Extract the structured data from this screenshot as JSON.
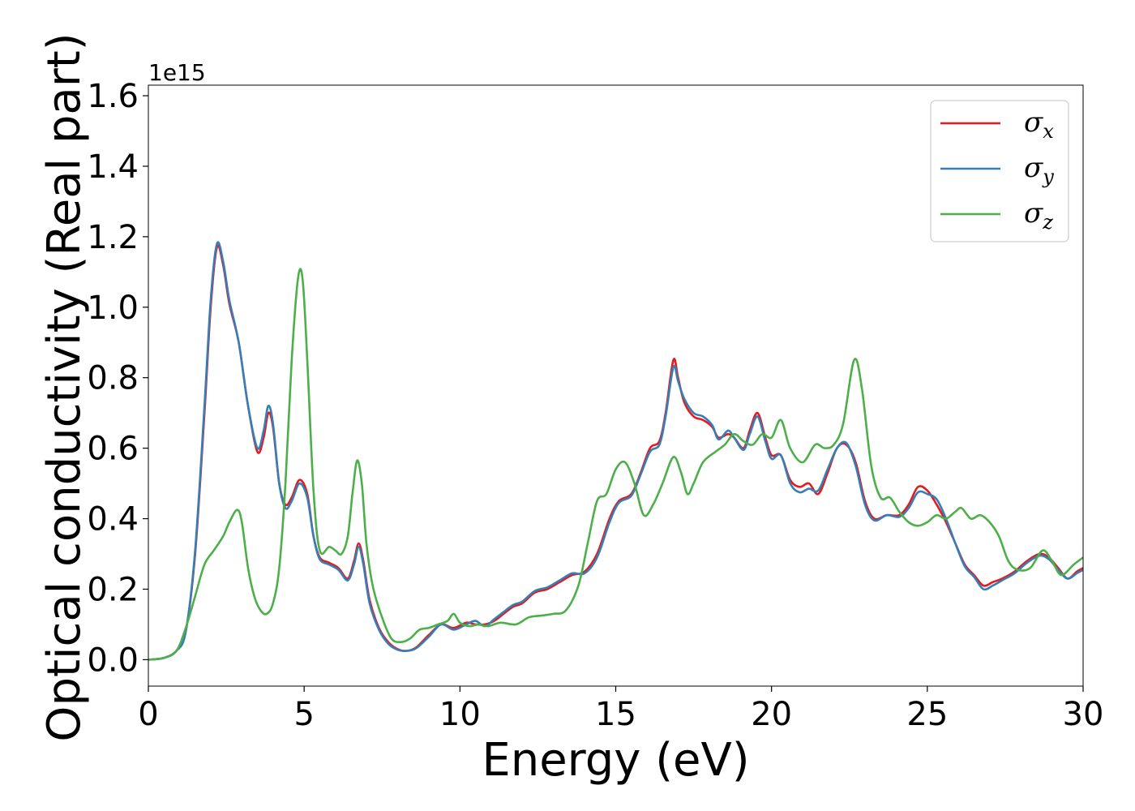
{
  "chart_data": {
    "type": "line",
    "xlabel": "Energy (eV)",
    "ylabel": "Optical conductivity (Real part)",
    "y_offset_label": "1e15",
    "xlim": [
      0,
      30
    ],
    "ylim": [
      -0.075,
      1.63
    ],
    "x_ticks": [
      0,
      5,
      10,
      15,
      20,
      25,
      30
    ],
    "x_tick_labels": [
      "0",
      "5",
      "10",
      "15",
      "20",
      "25",
      "30"
    ],
    "y_ticks": [
      0.0,
      0.2,
      0.4,
      0.6,
      0.8,
      1.0,
      1.2,
      1.4,
      1.6
    ],
    "y_tick_labels": [
      "0.0",
      "0.2",
      "0.4",
      "0.6",
      "0.8",
      "1.0",
      "1.2",
      "1.4",
      "1.6"
    ],
    "grid": false,
    "legend_position": "top-right",
    "series": [
      {
        "name": "σ",
        "subscript": "x",
        "color": "#e41a1c",
        "points": [
          [
            0,
            0
          ],
          [
            0.5,
            0.005
          ],
          [
            0.9,
            0.025
          ],
          [
            1.2,
            0.08
          ],
          [
            1.5,
            0.3
          ],
          [
            1.8,
            0.7
          ],
          [
            2.0,
            1.0
          ],
          [
            2.2,
            1.17
          ],
          [
            2.4,
            1.12
          ],
          [
            2.6,
            1.01
          ],
          [
            2.9,
            0.9
          ],
          [
            3.2,
            0.72
          ],
          [
            3.5,
            0.59
          ],
          [
            3.7,
            0.63
          ],
          [
            3.85,
            0.7
          ],
          [
            4.0,
            0.66
          ],
          [
            4.2,
            0.5
          ],
          [
            4.4,
            0.44
          ],
          [
            4.6,
            0.46
          ],
          [
            4.85,
            0.51
          ],
          [
            5.1,
            0.47
          ],
          [
            5.3,
            0.35
          ],
          [
            5.5,
            0.29
          ],
          [
            5.8,
            0.275
          ],
          [
            6.1,
            0.26
          ],
          [
            6.4,
            0.23
          ],
          [
            6.6,
            0.28
          ],
          [
            6.75,
            0.33
          ],
          [
            6.9,
            0.28
          ],
          [
            7.1,
            0.17
          ],
          [
            7.4,
            0.09
          ],
          [
            7.7,
            0.05
          ],
          [
            8.0,
            0.03
          ],
          [
            8.3,
            0.025
          ],
          [
            8.6,
            0.035
          ],
          [
            9.0,
            0.07
          ],
          [
            9.4,
            0.1
          ],
          [
            9.8,
            0.09
          ],
          [
            10.2,
            0.105
          ],
          [
            10.5,
            0.1
          ],
          [
            10.8,
            0.1
          ],
          [
            11.1,
            0.11
          ],
          [
            11.4,
            0.13
          ],
          [
            11.7,
            0.15
          ],
          [
            12.0,
            0.16
          ],
          [
            12.4,
            0.19
          ],
          [
            12.8,
            0.2
          ],
          [
            13.2,
            0.22
          ],
          [
            13.6,
            0.24
          ],
          [
            14.0,
            0.25
          ],
          [
            14.4,
            0.3
          ],
          [
            14.8,
            0.4
          ],
          [
            15.1,
            0.45
          ],
          [
            15.5,
            0.47
          ],
          [
            15.8,
            0.53
          ],
          [
            16.1,
            0.6
          ],
          [
            16.4,
            0.62
          ],
          [
            16.6,
            0.7
          ],
          [
            16.85,
            0.85
          ],
          [
            17.0,
            0.8
          ],
          [
            17.2,
            0.73
          ],
          [
            17.5,
            0.69
          ],
          [
            17.8,
            0.68
          ],
          [
            18.1,
            0.66
          ],
          [
            18.3,
            0.63
          ],
          [
            18.6,
            0.64
          ],
          [
            18.8,
            0.63
          ],
          [
            19.1,
            0.6
          ],
          [
            19.3,
            0.65
          ],
          [
            19.55,
            0.7
          ],
          [
            19.8,
            0.63
          ],
          [
            20.0,
            0.58
          ],
          [
            20.3,
            0.58
          ],
          [
            20.6,
            0.51
          ],
          [
            20.9,
            0.49
          ],
          [
            21.2,
            0.5
          ],
          [
            21.5,
            0.47
          ],
          [
            21.8,
            0.53
          ],
          [
            22.1,
            0.6
          ],
          [
            22.4,
            0.61
          ],
          [
            22.7,
            0.56
          ],
          [
            23.0,
            0.45
          ],
          [
            23.3,
            0.4
          ],
          [
            23.7,
            0.41
          ],
          [
            24.1,
            0.41
          ],
          [
            24.4,
            0.44
          ],
          [
            24.7,
            0.49
          ],
          [
            25.0,
            0.48
          ],
          [
            25.3,
            0.44
          ],
          [
            25.6,
            0.39
          ],
          [
            25.9,
            0.33
          ],
          [
            26.2,
            0.27
          ],
          [
            26.5,
            0.24
          ],
          [
            26.8,
            0.21
          ],
          [
            27.1,
            0.22
          ],
          [
            27.4,
            0.23
          ],
          [
            27.8,
            0.25
          ],
          [
            28.2,
            0.28
          ],
          [
            28.6,
            0.3
          ],
          [
            28.9,
            0.29
          ],
          [
            29.2,
            0.26
          ],
          [
            29.5,
            0.23
          ],
          [
            29.8,
            0.25
          ],
          [
            30.0,
            0.26
          ]
        ]
      },
      {
        "name": "σ",
        "subscript": "y",
        "color": "#377eb8",
        "points": [
          [
            0,
            0
          ],
          [
            0.5,
            0.005
          ],
          [
            0.9,
            0.025
          ],
          [
            1.2,
            0.08
          ],
          [
            1.5,
            0.31
          ],
          [
            1.8,
            0.72
          ],
          [
            2.0,
            1.02
          ],
          [
            2.2,
            1.18
          ],
          [
            2.4,
            1.13
          ],
          [
            2.6,
            1.02
          ],
          [
            2.9,
            0.9
          ],
          [
            3.2,
            0.72
          ],
          [
            3.5,
            0.6
          ],
          [
            3.7,
            0.65
          ],
          [
            3.85,
            0.72
          ],
          [
            4.0,
            0.67
          ],
          [
            4.2,
            0.5
          ],
          [
            4.4,
            0.43
          ],
          [
            4.6,
            0.45
          ],
          [
            4.85,
            0.5
          ],
          [
            5.1,
            0.46
          ],
          [
            5.3,
            0.35
          ],
          [
            5.5,
            0.285
          ],
          [
            5.8,
            0.27
          ],
          [
            6.1,
            0.255
          ],
          [
            6.4,
            0.225
          ],
          [
            6.6,
            0.27
          ],
          [
            6.75,
            0.32
          ],
          [
            6.9,
            0.27
          ],
          [
            7.1,
            0.16
          ],
          [
            7.4,
            0.085
          ],
          [
            7.7,
            0.045
          ],
          [
            8.0,
            0.028
          ],
          [
            8.3,
            0.025
          ],
          [
            8.6,
            0.033
          ],
          [
            9.0,
            0.065
          ],
          [
            9.4,
            0.1
          ],
          [
            9.8,
            0.085
          ],
          [
            10.2,
            0.1
          ],
          [
            10.5,
            0.11
          ],
          [
            10.8,
            0.095
          ],
          [
            11.1,
            0.115
          ],
          [
            11.4,
            0.135
          ],
          [
            11.7,
            0.155
          ],
          [
            12.0,
            0.165
          ],
          [
            12.4,
            0.195
          ],
          [
            12.8,
            0.205
          ],
          [
            13.2,
            0.225
          ],
          [
            13.6,
            0.245
          ],
          [
            14.0,
            0.245
          ],
          [
            14.4,
            0.29
          ],
          [
            14.8,
            0.39
          ],
          [
            15.1,
            0.445
          ],
          [
            15.5,
            0.465
          ],
          [
            15.8,
            0.525
          ],
          [
            16.1,
            0.59
          ],
          [
            16.4,
            0.61
          ],
          [
            16.6,
            0.69
          ],
          [
            16.85,
            0.83
          ],
          [
            17.0,
            0.79
          ],
          [
            17.2,
            0.74
          ],
          [
            17.5,
            0.7
          ],
          [
            17.8,
            0.69
          ],
          [
            18.1,
            0.665
          ],
          [
            18.3,
            0.625
          ],
          [
            18.6,
            0.65
          ],
          [
            18.8,
            0.63
          ],
          [
            19.1,
            0.595
          ],
          [
            19.3,
            0.64
          ],
          [
            19.55,
            0.69
          ],
          [
            19.8,
            0.62
          ],
          [
            20.0,
            0.57
          ],
          [
            20.3,
            0.58
          ],
          [
            20.6,
            0.5
          ],
          [
            20.9,
            0.475
          ],
          [
            21.2,
            0.485
          ],
          [
            21.5,
            0.48
          ],
          [
            21.8,
            0.54
          ],
          [
            22.1,
            0.6
          ],
          [
            22.4,
            0.615
          ],
          [
            22.7,
            0.55
          ],
          [
            23.0,
            0.44
          ],
          [
            23.3,
            0.395
          ],
          [
            23.7,
            0.41
          ],
          [
            24.1,
            0.405
          ],
          [
            24.4,
            0.43
          ],
          [
            24.7,
            0.475
          ],
          [
            25.0,
            0.47
          ],
          [
            25.3,
            0.455
          ],
          [
            25.6,
            0.4
          ],
          [
            25.9,
            0.33
          ],
          [
            26.2,
            0.265
          ],
          [
            26.5,
            0.235
          ],
          [
            26.8,
            0.2
          ],
          [
            27.1,
            0.21
          ],
          [
            27.4,
            0.225
          ],
          [
            27.8,
            0.245
          ],
          [
            28.2,
            0.275
          ],
          [
            28.6,
            0.295
          ],
          [
            28.9,
            0.285
          ],
          [
            29.2,
            0.255
          ],
          [
            29.5,
            0.23
          ],
          [
            29.8,
            0.245
          ],
          [
            30.0,
            0.255
          ]
        ]
      },
      {
        "name": "σ",
        "subscript": "z",
        "color": "#4daf4a",
        "points": [
          [
            0,
            0
          ],
          [
            0.5,
            0.005
          ],
          [
            0.9,
            0.025
          ],
          [
            1.2,
            0.09
          ],
          [
            1.5,
            0.18
          ],
          [
            1.8,
            0.27
          ],
          [
            2.1,
            0.31
          ],
          [
            2.4,
            0.35
          ],
          [
            2.6,
            0.39
          ],
          [
            2.85,
            0.425
          ],
          [
            3.0,
            0.39
          ],
          [
            3.2,
            0.26
          ],
          [
            3.4,
            0.18
          ],
          [
            3.6,
            0.14
          ],
          [
            3.8,
            0.13
          ],
          [
            4.0,
            0.16
          ],
          [
            4.2,
            0.26
          ],
          [
            4.4,
            0.5
          ],
          [
            4.6,
            0.85
          ],
          [
            4.8,
            1.08
          ],
          [
            4.95,
            1.08
          ],
          [
            5.1,
            0.85
          ],
          [
            5.3,
            0.48
          ],
          [
            5.5,
            0.31
          ],
          [
            5.8,
            0.32
          ],
          [
            6.0,
            0.31
          ],
          [
            6.2,
            0.3
          ],
          [
            6.4,
            0.35
          ],
          [
            6.55,
            0.47
          ],
          [
            6.7,
            0.565
          ],
          [
            6.85,
            0.5
          ],
          [
            7.0,
            0.33
          ],
          [
            7.2,
            0.21
          ],
          [
            7.5,
            0.12
          ],
          [
            7.8,
            0.06
          ],
          [
            8.1,
            0.05
          ],
          [
            8.4,
            0.06
          ],
          [
            8.7,
            0.085
          ],
          [
            9.0,
            0.09
          ],
          [
            9.3,
            0.1
          ],
          [
            9.6,
            0.11
          ],
          [
            9.8,
            0.13
          ],
          [
            10.0,
            0.105
          ],
          [
            10.3,
            0.095
          ],
          [
            10.6,
            0.1
          ],
          [
            10.9,
            0.095
          ],
          [
            11.3,
            0.105
          ],
          [
            11.8,
            0.1
          ],
          [
            12.2,
            0.12
          ],
          [
            12.6,
            0.125
          ],
          [
            13.0,
            0.13
          ],
          [
            13.4,
            0.14
          ],
          [
            13.8,
            0.21
          ],
          [
            14.1,
            0.33
          ],
          [
            14.4,
            0.45
          ],
          [
            14.7,
            0.47
          ],
          [
            15.0,
            0.54
          ],
          [
            15.3,
            0.56
          ],
          [
            15.6,
            0.5
          ],
          [
            15.9,
            0.41
          ],
          [
            16.2,
            0.44
          ],
          [
            16.5,
            0.5
          ],
          [
            16.85,
            0.575
          ],
          [
            17.1,
            0.53
          ],
          [
            17.3,
            0.47
          ],
          [
            17.5,
            0.5
          ],
          [
            17.8,
            0.56
          ],
          [
            18.2,
            0.59
          ],
          [
            18.5,
            0.61
          ],
          [
            18.8,
            0.64
          ],
          [
            19.1,
            0.62
          ],
          [
            19.4,
            0.61
          ],
          [
            19.7,
            0.64
          ],
          [
            20.0,
            0.63
          ],
          [
            20.3,
            0.68
          ],
          [
            20.6,
            0.6
          ],
          [
            21.0,
            0.56
          ],
          [
            21.4,
            0.61
          ],
          [
            21.7,
            0.6
          ],
          [
            22.0,
            0.61
          ],
          [
            22.3,
            0.67
          ],
          [
            22.65,
            0.85
          ],
          [
            22.9,
            0.77
          ],
          [
            23.2,
            0.55
          ],
          [
            23.5,
            0.46
          ],
          [
            23.8,
            0.46
          ],
          [
            24.1,
            0.42
          ],
          [
            24.4,
            0.39
          ],
          [
            24.7,
            0.38
          ],
          [
            25.0,
            0.39
          ],
          [
            25.3,
            0.41
          ],
          [
            25.6,
            0.4
          ],
          [
            25.9,
            0.42
          ],
          [
            26.1,
            0.43
          ],
          [
            26.4,
            0.4
          ],
          [
            26.7,
            0.41
          ],
          [
            27.0,
            0.39
          ],
          [
            27.3,
            0.35
          ],
          [
            27.6,
            0.28
          ],
          [
            27.9,
            0.255
          ],
          [
            28.3,
            0.26
          ],
          [
            28.7,
            0.31
          ],
          [
            29.0,
            0.28
          ],
          [
            29.3,
            0.24
          ],
          [
            29.7,
            0.27
          ],
          [
            30.0,
            0.29
          ]
        ]
      }
    ]
  }
}
